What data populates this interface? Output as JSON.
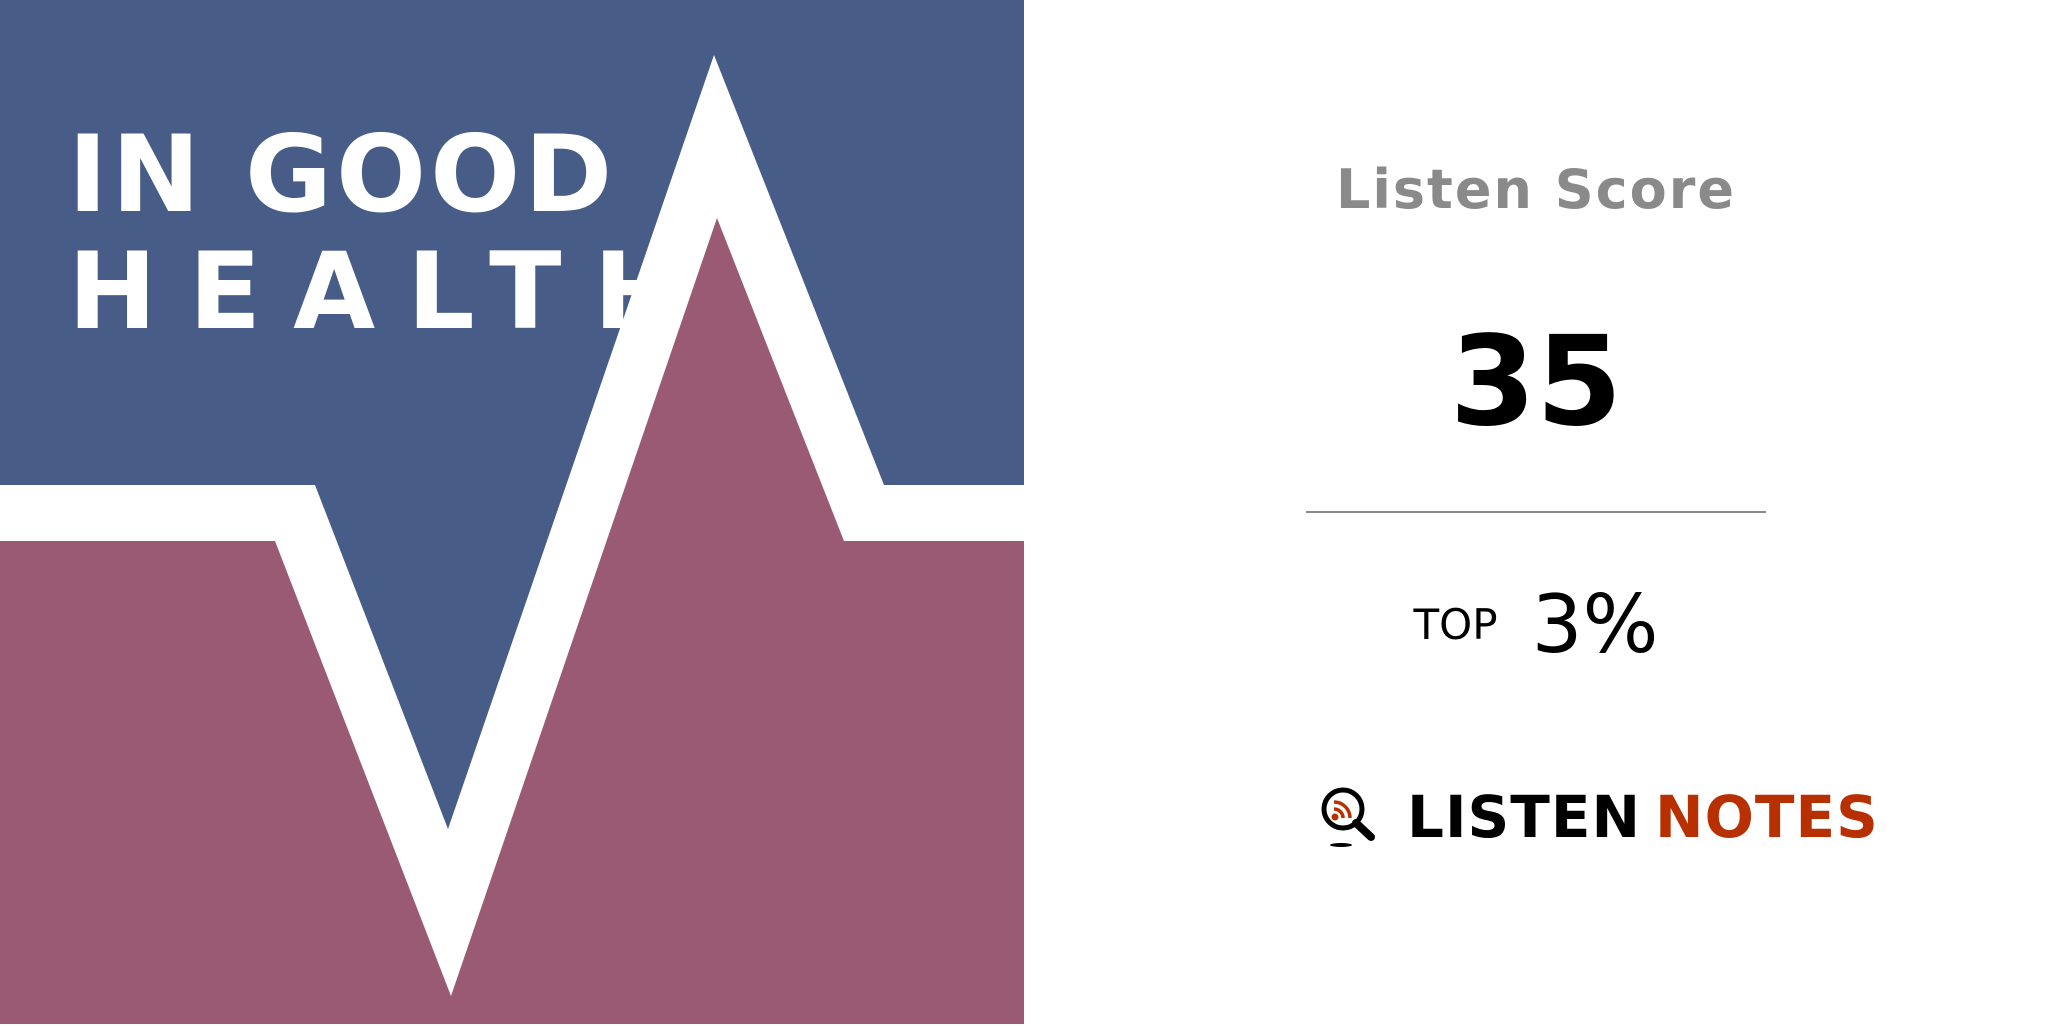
{
  "cover": {
    "title_line1": "IN GOOD",
    "title_line2": "HEALTH",
    "colors": {
      "top": "#475d87",
      "bottom": "#9a5a73",
      "line": "#ffffff"
    }
  },
  "score_card": {
    "label": "Listen Score",
    "score": "35",
    "rank_prefix": "TOP",
    "rank_value": "3%"
  },
  "brand": {
    "icon": "magnifier-rss-icon",
    "name_part1": "LISTEN",
    "name_part2": "NOTES",
    "accent_color": "#b83000"
  }
}
